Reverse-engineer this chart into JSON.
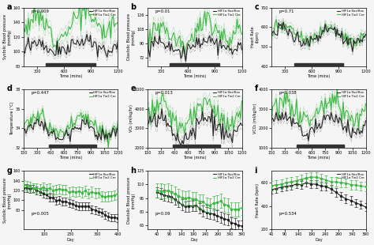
{
  "panels": [
    {
      "label": "a",
      "pval": "p=0.009",
      "ylabel": "Systolic Blood pressure\n(mmHg)",
      "xlabel": "Time (mins)",
      "ylim": [
        80,
        160
      ],
      "yticks": [
        80,
        100,
        120,
        140,
        160
      ],
      "xrange": [
        150,
        1200
      ],
      "xticks": [
        300,
        600,
        900,
        1200
      ],
      "bar": [
        400,
        950
      ],
      "row": 0,
      "col": 0,
      "green_base": 130,
      "green_amp": 15,
      "green_noise": 8,
      "green_trend": 15,
      "green_err": 8,
      "black_base": 105,
      "black_amp": 8,
      "black_noise": 5,
      "black_trend": 5,
      "black_err": 5
    },
    {
      "label": "b",
      "pval": "p=0.01",
      "ylabel": "Diastolic Blood pressure\n(mmHg)",
      "xlabel": "Time (mins)",
      "ylim": [
        62,
        135
      ],
      "yticks": [
        72,
        90,
        108,
        126
      ],
      "xrange": [
        150,
        1200
      ],
      "xticks": [
        300,
        600,
        900,
        1200
      ],
      "bar": [
        400,
        950
      ],
      "row": 0,
      "col": 1,
      "green_base": 100,
      "green_amp": 12,
      "green_noise": 7,
      "green_trend": 10,
      "green_err": 7,
      "black_base": 86,
      "black_amp": 8,
      "black_noise": 5,
      "black_trend": 3,
      "black_err": 5
    },
    {
      "label": "c",
      "pval": "p=0.71",
      "ylabel": "Heart Rate\n(bpm)",
      "xlabel": "Time (mins)",
      "ylim": [
        400,
        700
      ],
      "yticks": [
        400,
        500,
        600,
        700
      ],
      "xrange": [
        150,
        1200
      ],
      "xticks": [
        300,
        600,
        900,
        1200
      ],
      "bar": [
        400,
        950
      ],
      "row": 0,
      "col": 2,
      "green_base": 565,
      "green_amp": 40,
      "green_noise": 20,
      "green_trend": 0,
      "green_err": 20,
      "black_base": 555,
      "black_amp": 35,
      "black_noise": 18,
      "black_trend": 0,
      "black_err": 18
    },
    {
      "label": "d",
      "pval": "p=0.447",
      "ylabel": "Temperature (°C)",
      "xlabel": "Time (mins)",
      "ylim": [
        32,
        38
      ],
      "yticks": [
        32,
        34,
        36,
        38
      ],
      "xrange": [
        150,
        1200
      ],
      "xticks": [
        150,
        300,
        450,
        600,
        750,
        900,
        1050,
        1200
      ],
      "bar": [
        430,
        960
      ],
      "row": 1,
      "col": 0,
      "green_base": 34.3,
      "green_amp": 0.8,
      "green_noise": 0.4,
      "green_trend": 0,
      "green_err": 0.35,
      "black_base": 33.8,
      "black_amp": 0.7,
      "black_noise": 0.35,
      "black_trend": 0,
      "black_err": 0.3
    },
    {
      "label": "e",
      "pval": "p=0.013",
      "ylabel": "VO₂ (ml/kg/hr)",
      "xlabel": "Time (mins)",
      "ylim": [
        2000,
        5000
      ],
      "yticks": [
        2000,
        3000,
        4000,
        5000
      ],
      "xrange": [
        150,
        1200
      ],
      "xticks": [
        150,
        300,
        450,
        600,
        750,
        900,
        1050,
        1200
      ],
      "bar": [
        430,
        960
      ],
      "row": 1,
      "col": 1,
      "green_base": 3600,
      "green_amp": 600,
      "green_noise": 300,
      "green_trend": 200,
      "green_err": 280,
      "black_base": 3000,
      "black_amp": 500,
      "black_noise": 250,
      "black_trend": 0,
      "black_err": 240
    },
    {
      "label": "f",
      "pval": "p=0.038",
      "ylabel": "VCO₂ (ml/kg/hr)",
      "xlabel": "Time (mins)",
      "ylim": [
        1000,
        4000
      ],
      "yticks": [
        1000,
        2000,
        3000,
        4000
      ],
      "xrange": [
        150,
        1200
      ],
      "xticks": [
        150,
        300,
        450,
        600,
        750,
        900,
        1050,
        1200
      ],
      "bar": [
        430,
        960
      ],
      "row": 1,
      "col": 2,
      "green_base": 2800,
      "green_amp": 500,
      "green_noise": 250,
      "green_trend": 200,
      "green_err": 230,
      "black_base": 2200,
      "black_amp": 400,
      "black_noise": 200,
      "black_trend": 0,
      "black_err": 190
    },
    {
      "label": "g",
      "pval": "p=0.005",
      "ylabel": "Systolic Blood pressure\n(mmHg)",
      "xlabel": "Day",
      "ylim": [
        40,
        160
      ],
      "yticks": [
        80,
        100,
        120,
        140,
        160
      ],
      "xrange": [
        0,
        460
      ],
      "xticks": [
        100,
        230,
        360,
        460
      ],
      "bar": null,
      "row": 2,
      "col": 0
    },
    {
      "label": "h",
      "pval": "p=0.09",
      "ylabel": "Diastolic Blood pressure\n(mmHg)",
      "xlabel": "Day",
      "ylim": [
        60,
        125
      ],
      "yticks": [
        65,
        80,
        95,
        110,
        125
      ],
      "xrange": [
        0,
        390
      ],
      "xticks": [
        40,
        90,
        140,
        190,
        240,
        290,
        340,
        390
      ],
      "bar": null,
      "row": 2,
      "col": 1
    },
    {
      "label": "i",
      "pval": "p=0.534",
      "ylabel": "Heart Rate (bpm)",
      "xlabel": "Day",
      "ylim": [
        200,
        700
      ],
      "yticks": [
        200,
        400,
        600
      ],
      "xrange": [
        40,
        390
      ],
      "xticks": [
        40,
        90,
        140,
        190,
        240,
        290,
        340,
        390
      ],
      "bar": null,
      "row": 2,
      "col": 2
    }
  ],
  "green_color": "#3cb843",
  "black_color": "#222222",
  "legend_green": "HIF1α Tie2 Cre",
  "legend_black": "HIF1α flox/flox",
  "bg_color": "#f5f5f5",
  "bar_color": "#333333"
}
